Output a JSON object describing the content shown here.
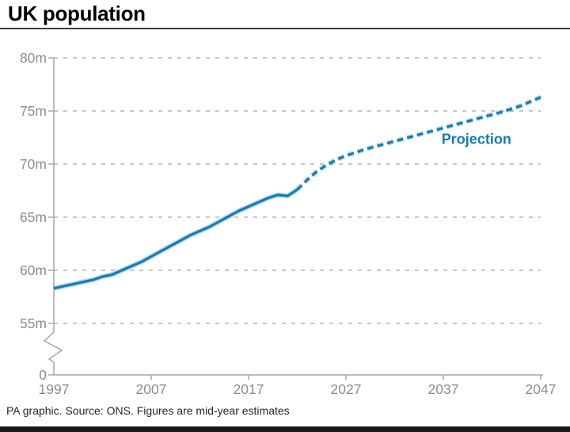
{
  "header": {
    "title": "UK population"
  },
  "footer": {
    "text": "PA graphic. Source: ONS. Figures are mid-year estimates"
  },
  "colors": {
    "line_blue": "#137cb4",
    "line_halo": "rgba(19,124,180,0.28)",
    "grid": "#c7c7c7",
    "axis": "#a6a6a6",
    "tick_label": "#8d8d8d",
    "title_text": "#000000",
    "footer_text": "#262626",
    "bottom_bar": "#191919",
    "annotation_text": "#137cb4"
  },
  "chart_data": {
    "type": "line",
    "title": "UK population",
    "xlabel": "",
    "ylabel": "",
    "unit": "millions of people",
    "x_range": [
      1997,
      2047
    ],
    "ylim_display": [
      55,
      80
    ],
    "axis_break": true,
    "grid": "dashed-horizontal",
    "x_tick_years": [
      1997,
      2007,
      2017,
      2027,
      2037,
      2047
    ],
    "y_tick_values": [
      80,
      75,
      70,
      65,
      60,
      55
    ],
    "y_tick_labels": [
      "80m",
      "75m",
      "70m",
      "65m",
      "60m",
      "55m"
    ],
    "y_zero_label": "0",
    "series": [
      {
        "name": "Mid-year estimates",
        "style": "solid",
        "x": [
          1997,
          1998,
          1999,
          2000,
          2001,
          2002,
          2003,
          2004,
          2005,
          2006,
          2007,
          2008,
          2009,
          2010,
          2011,
          2012,
          2013,
          2014,
          2015,
          2016,
          2017,
          2018,
          2019,
          2020,
          2021,
          2022
        ],
        "values": [
          58.3,
          58.5,
          58.7,
          58.9,
          59.1,
          59.4,
          59.6,
          60.0,
          60.4,
          60.8,
          61.3,
          61.8,
          62.3,
          62.8,
          63.3,
          63.7,
          64.1,
          64.6,
          65.1,
          65.6,
          66.0,
          66.4,
          66.8,
          67.1,
          67.0,
          67.6
        ]
      },
      {
        "name": "Projection",
        "style": "dashed",
        "x": [
          2022,
          2023,
          2024,
          2025,
          2026,
          2027,
          2028,
          2029,
          2030,
          2031,
          2032,
          2033,
          2034,
          2035,
          2036,
          2037,
          2038,
          2039,
          2040,
          2041,
          2042,
          2043,
          2044,
          2045,
          2046,
          2047
        ],
        "values": [
          67.6,
          68.5,
          69.3,
          69.9,
          70.4,
          70.8,
          71.1,
          71.4,
          71.65,
          71.9,
          72.15,
          72.4,
          72.65,
          72.9,
          73.15,
          73.4,
          73.65,
          73.9,
          74.15,
          74.4,
          74.65,
          74.9,
          75.2,
          75.5,
          75.9,
          76.3
        ]
      }
    ],
    "annotations": [
      {
        "text": "Projection",
        "anchor_year": 2040.4,
        "anchor_value": 71.9
      }
    ],
    "legend_position": "none"
  }
}
